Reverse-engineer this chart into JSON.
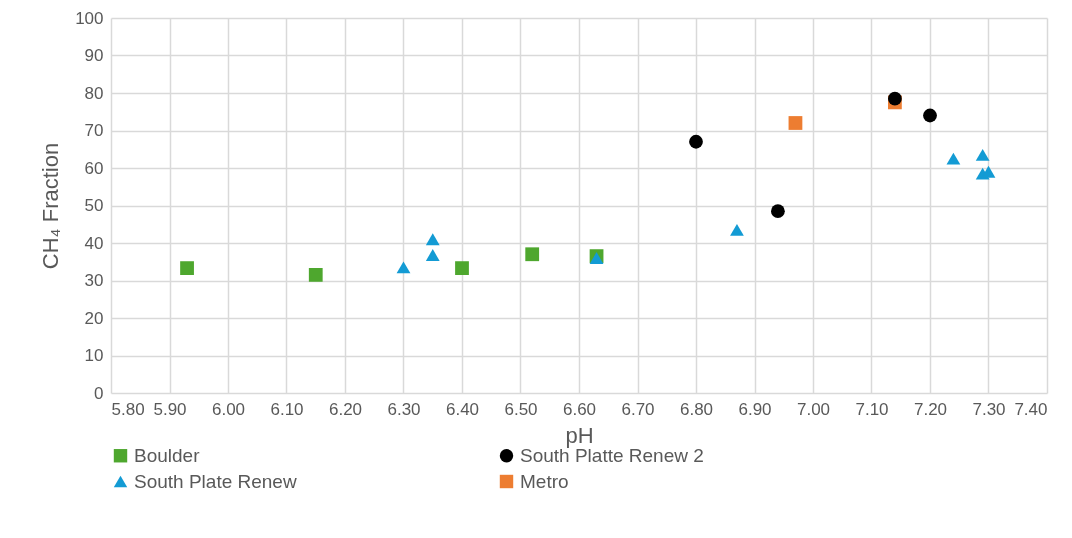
{
  "chart_data": {
    "type": "scatter",
    "xlabel": "pH",
    "ylabel": "CH₄ Fraction",
    "xlim": [
      5.8,
      7.4
    ],
    "xticks": [
      {
        "value": 5.8,
        "label": "5.80"
      },
      {
        "value": 5.9,
        "label": "5.90"
      },
      {
        "value": 6.0,
        "label": "6.00"
      },
      {
        "value": 6.1,
        "label": "6.10"
      },
      {
        "value": 6.2,
        "label": "6.20"
      },
      {
        "value": 6.3,
        "label": "6.30"
      },
      {
        "value": 6.4,
        "label": "6.40"
      },
      {
        "value": 6.5,
        "label": "6.50"
      },
      {
        "value": 6.6,
        "label": "6.60"
      },
      {
        "value": 6.7,
        "label": "6.70"
      },
      {
        "value": 6.8,
        "label": "6.80"
      },
      {
        "value": 6.9,
        "label": "6.90"
      },
      {
        "value": 7.0,
        "label": "7.00"
      },
      {
        "value": 7.1,
        "label": "7.10"
      },
      {
        "value": 7.2,
        "label": "7.20"
      },
      {
        "value": 7.3,
        "label": "7.30"
      },
      {
        "value": 7.4,
        "label": "7.40"
      }
    ],
    "ylim": [
      0,
      100
    ],
    "yticks": [
      0,
      10,
      20,
      30,
      40,
      50,
      60,
      70,
      80,
      90,
      100
    ],
    "grid": true,
    "legend": "bottom",
    "series": [
      {
        "name": "Boulder",
        "color": "#4ea72e",
        "marker": "square",
        "x": [
          5.93,
          6.15,
          6.4,
          6.52,
          6.63
        ],
        "values": [
          33.3,
          31.5,
          33.3,
          37,
          36.5
        ]
      },
      {
        "name": "South Platte Renew 2",
        "color": "#000000",
        "marker": "circle",
        "x": [
          6.8,
          6.94,
          7.14,
          7.2
        ],
        "values": [
          67,
          48.5,
          78.5,
          74
        ]
      },
      {
        "name": "South Plate Renew",
        "color": "#139bd4",
        "marker": "triangle",
        "x": [
          6.3,
          6.35,
          6.35,
          6.63,
          6.87,
          7.24,
          7.29,
          7.29,
          7.3
        ],
        "values": [
          33.5,
          41,
          36.8,
          36,
          43.5,
          62.5,
          63.5,
          58.5,
          59
        ]
      },
      {
        "name": "Metro",
        "color": "#ed7d31",
        "marker": "square",
        "x": [
          6.97,
          7.14
        ],
        "values": [
          72,
          77.5
        ]
      }
    ]
  }
}
